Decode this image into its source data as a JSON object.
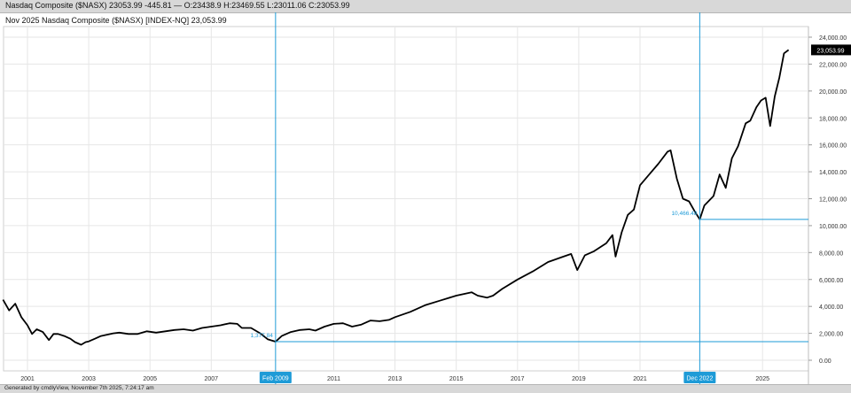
{
  "header": {
    "quote_line": "Nasdaq Composite ($NASX) 23053.99 -445.81 — O:23438.9 H:23469.55 L:23011.06 C:23053.99",
    "chart_title": "Nov 2025  Nasdaq Composite ($NASX) [INDEX-NQ] 23,053.99"
  },
  "footer": {
    "generated": "Generated by cmdlyView, November 7th 2025, 7:24:17 am"
  },
  "chart_data": {
    "type": "line",
    "title": "Nov 2025  Nasdaq Composite ($NASX) [INDEX-NQ] 23,053.99",
    "xlabel": "",
    "ylabel": "",
    "ylim": [
      0,
      24000
    ],
    "y_ticks": [
      "0.00",
      "2,000.00",
      "4,000.00",
      "6,000.00",
      "8,000.00",
      "10,000.00",
      "12,000.00",
      "14,000.00",
      "16,000.00",
      "18,000.00",
      "20,000.00",
      "22,000.00",
      "24,000.00"
    ],
    "x_ticks": [
      {
        "year": 2001,
        "label": "2001"
      },
      {
        "year": 2003,
        "label": "2003"
      },
      {
        "year": 2005,
        "label": "2005"
      },
      {
        "year": 2007,
        "label": "2007"
      },
      {
        "year": 2011,
        "label": "2011"
      },
      {
        "year": 2013,
        "label": "2013"
      },
      {
        "year": 2015,
        "label": "2015"
      },
      {
        "year": 2017,
        "label": "2017"
      },
      {
        "year": 2019,
        "label": "2019"
      },
      {
        "year": 2021,
        "label": "2021"
      },
      {
        "year": 2025,
        "label": "2025"
      }
    ],
    "markers": [
      {
        "label": "Feb 2009",
        "year": 2009.1,
        "value": 1377.84,
        "value_label": "1,377.84"
      },
      {
        "label": "Dec 2022",
        "year": 2022.95,
        "value": 10466.48,
        "value_label": "10,466.48"
      }
    ],
    "last_value_label": "23,053.99",
    "line_color": "#000000",
    "marker_color": "#1e9bd7",
    "grid": true,
    "series": [
      {
        "x": [
          2000.2,
          2000.4,
          2000.6,
          2000.8,
          2001.0,
          2001.15,
          2001.3,
          2001.5,
          2001.7,
          2001.85,
          2002.0,
          2002.2,
          2002.4,
          2002.55,
          2002.75,
          2002.9,
          2003.0,
          2003.2,
          2003.4,
          2003.6,
          2003.8,
          2004.0,
          2004.3,
          2004.6,
          2004.9,
          2005.2,
          2005.5,
          2005.8,
          2006.1,
          2006.4,
          2006.7,
          2007.0,
          2007.3,
          2007.6,
          2007.85,
          2008.0,
          2008.3,
          2008.6,
          2008.85,
          2009.1,
          2009.3,
          2009.6,
          2009.9,
          2010.2,
          2010.4,
          2010.7,
          2011.0,
          2011.3,
          2011.6,
          2011.9,
          2012.2,
          2012.5,
          2012.8,
          2013.0,
          2013.5,
          2014.0,
          2014.5,
          2015.0,
          2015.5,
          2015.7,
          2016.0,
          2016.2,
          2016.5,
          2017.0,
          2017.5,
          2018.0,
          2018.5,
          2018.75,
          2018.95,
          2019.2,
          2019.5,
          2019.9,
          2020.1,
          2020.2,
          2020.4,
          2020.6,
          2020.8,
          2021.0,
          2021.3,
          2021.6,
          2021.9,
          2022.0,
          2022.2,
          2022.4,
          2022.6,
          2022.8,
          2022.95,
          2023.1,
          2023.4,
          2023.6,
          2023.8,
          2024.0,
          2024.2,
          2024.45,
          2024.6,
          2024.8,
          2024.95,
          2025.1,
          2025.25,
          2025.4,
          2025.55,
          2025.7,
          2025.85
        ],
        "y": [
          4500,
          3700,
          4200,
          3200,
          2600,
          1950,
          2300,
          2100,
          1500,
          1950,
          1950,
          1800,
          1600,
          1350,
          1150,
          1350,
          1400,
          1600,
          1800,
          1900,
          2000,
          2050,
          1950,
          1950,
          2150,
          2050,
          2150,
          2250,
          2300,
          2200,
          2400,
          2500,
          2600,
          2750,
          2700,
          2400,
          2400,
          2000,
          1550,
          1378,
          1800,
          2100,
          2250,
          2300,
          2200,
          2500,
          2700,
          2750,
          2500,
          2650,
          2950,
          2900,
          3000,
          3200,
          3600,
          4100,
          4450,
          4800,
          5050,
          4800,
          4650,
          4800,
          5300,
          6000,
          6600,
          7300,
          7700,
          7900,
          6700,
          7800,
          8100,
          8700,
          9300,
          7700,
          9500,
          10800,
          11200,
          13000,
          13800,
          14600,
          15500,
          15600,
          13500,
          12000,
          11800,
          11000,
          10466,
          11500,
          12200,
          13800,
          12800,
          15000,
          15900,
          17600,
          17800,
          18800,
          19300,
          19500,
          17400,
          19600,
          21000,
          22800,
          23054
        ]
      }
    ]
  }
}
